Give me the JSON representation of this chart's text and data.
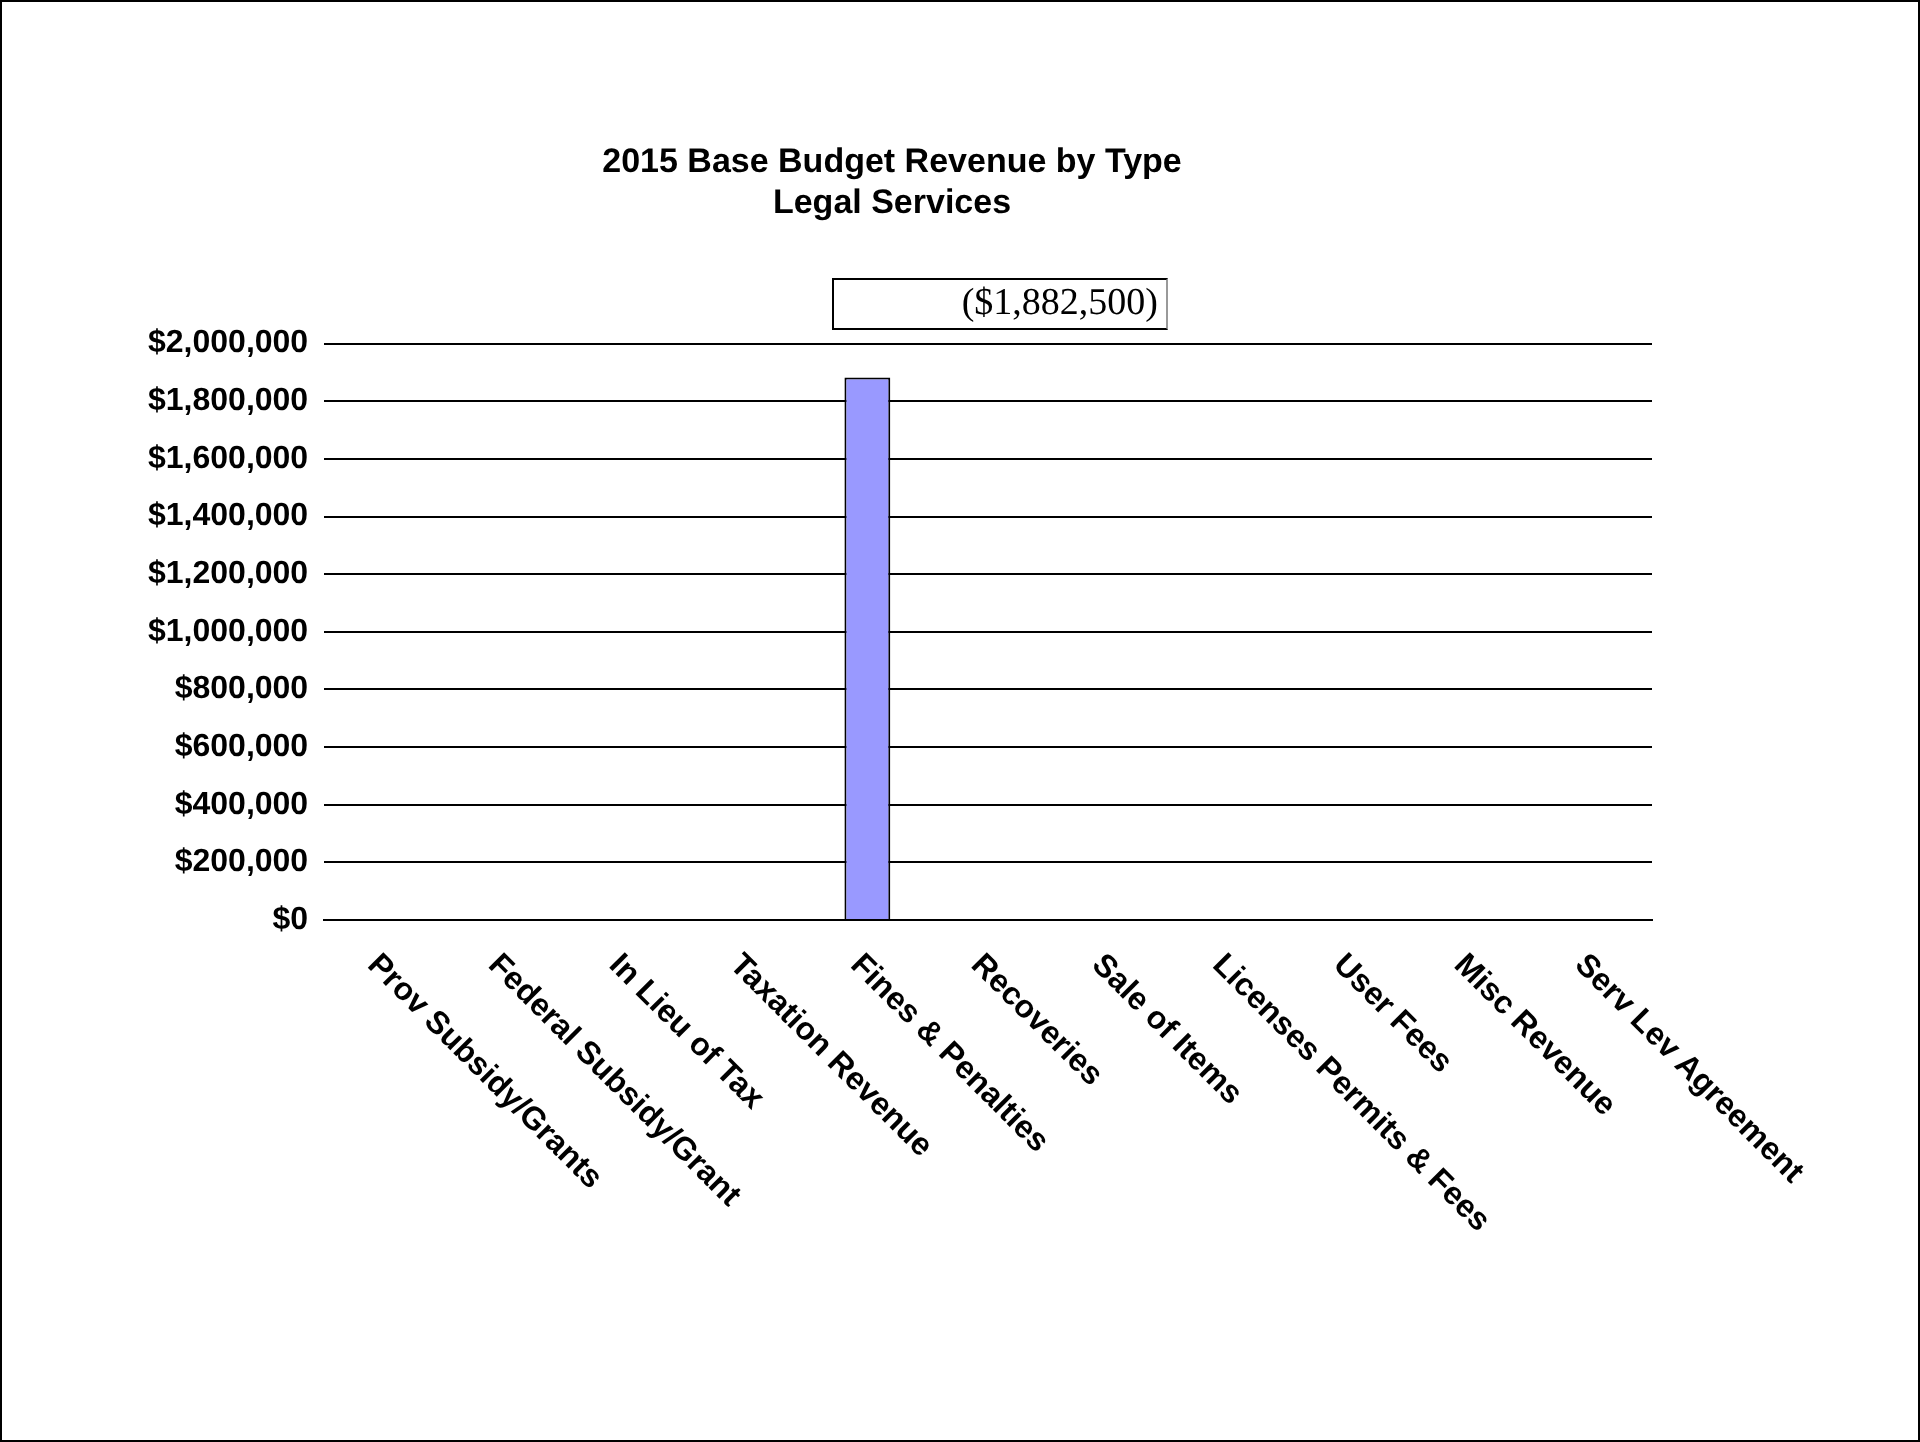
{
  "chart_data": {
    "type": "bar",
    "title": "2015 Base Budget Revenue by Type",
    "subtitle": "Legal Services",
    "annotations": [
      "($1,882,500)"
    ],
    "categories": [
      "Prov Subsidy/Grants",
      "Federal Subsidy/Grant",
      "In Lieu of Tax",
      "Taxation Revenue",
      "Fines & Penalties",
      "Recoveries",
      "Sale of Items",
      "Licenses Permits & Fees",
      "User Fees",
      "Misc Revenue",
      "Serv Lev Agreement"
    ],
    "values": [
      0,
      0,
      0,
      0,
      1882500,
      0,
      0,
      0,
      0,
      0,
      0
    ],
    "color": "#9999ff",
    "ylim": [
      0,
      2000000
    ],
    "yticks": [
      {
        "value": 0,
        "label": "$0"
      },
      {
        "value": 200000,
        "label": "$200,000"
      },
      {
        "value": 400000,
        "label": "$400,000"
      },
      {
        "value": 600000,
        "label": "$600,000"
      },
      {
        "value": 800000,
        "label": "$800,000"
      },
      {
        "value": 1000000,
        "label": "$1,000,000"
      },
      {
        "value": 1200000,
        "label": "$1,200,000"
      },
      {
        "value": 1400000,
        "label": "$1,400,000"
      },
      {
        "value": 1600000,
        "label": "$1,600,000"
      },
      {
        "value": 1800000,
        "label": "$1,800,000"
      },
      {
        "value": 2000000,
        "label": "$2,000,000"
      }
    ],
    "grid": "y",
    "legend": false
  }
}
